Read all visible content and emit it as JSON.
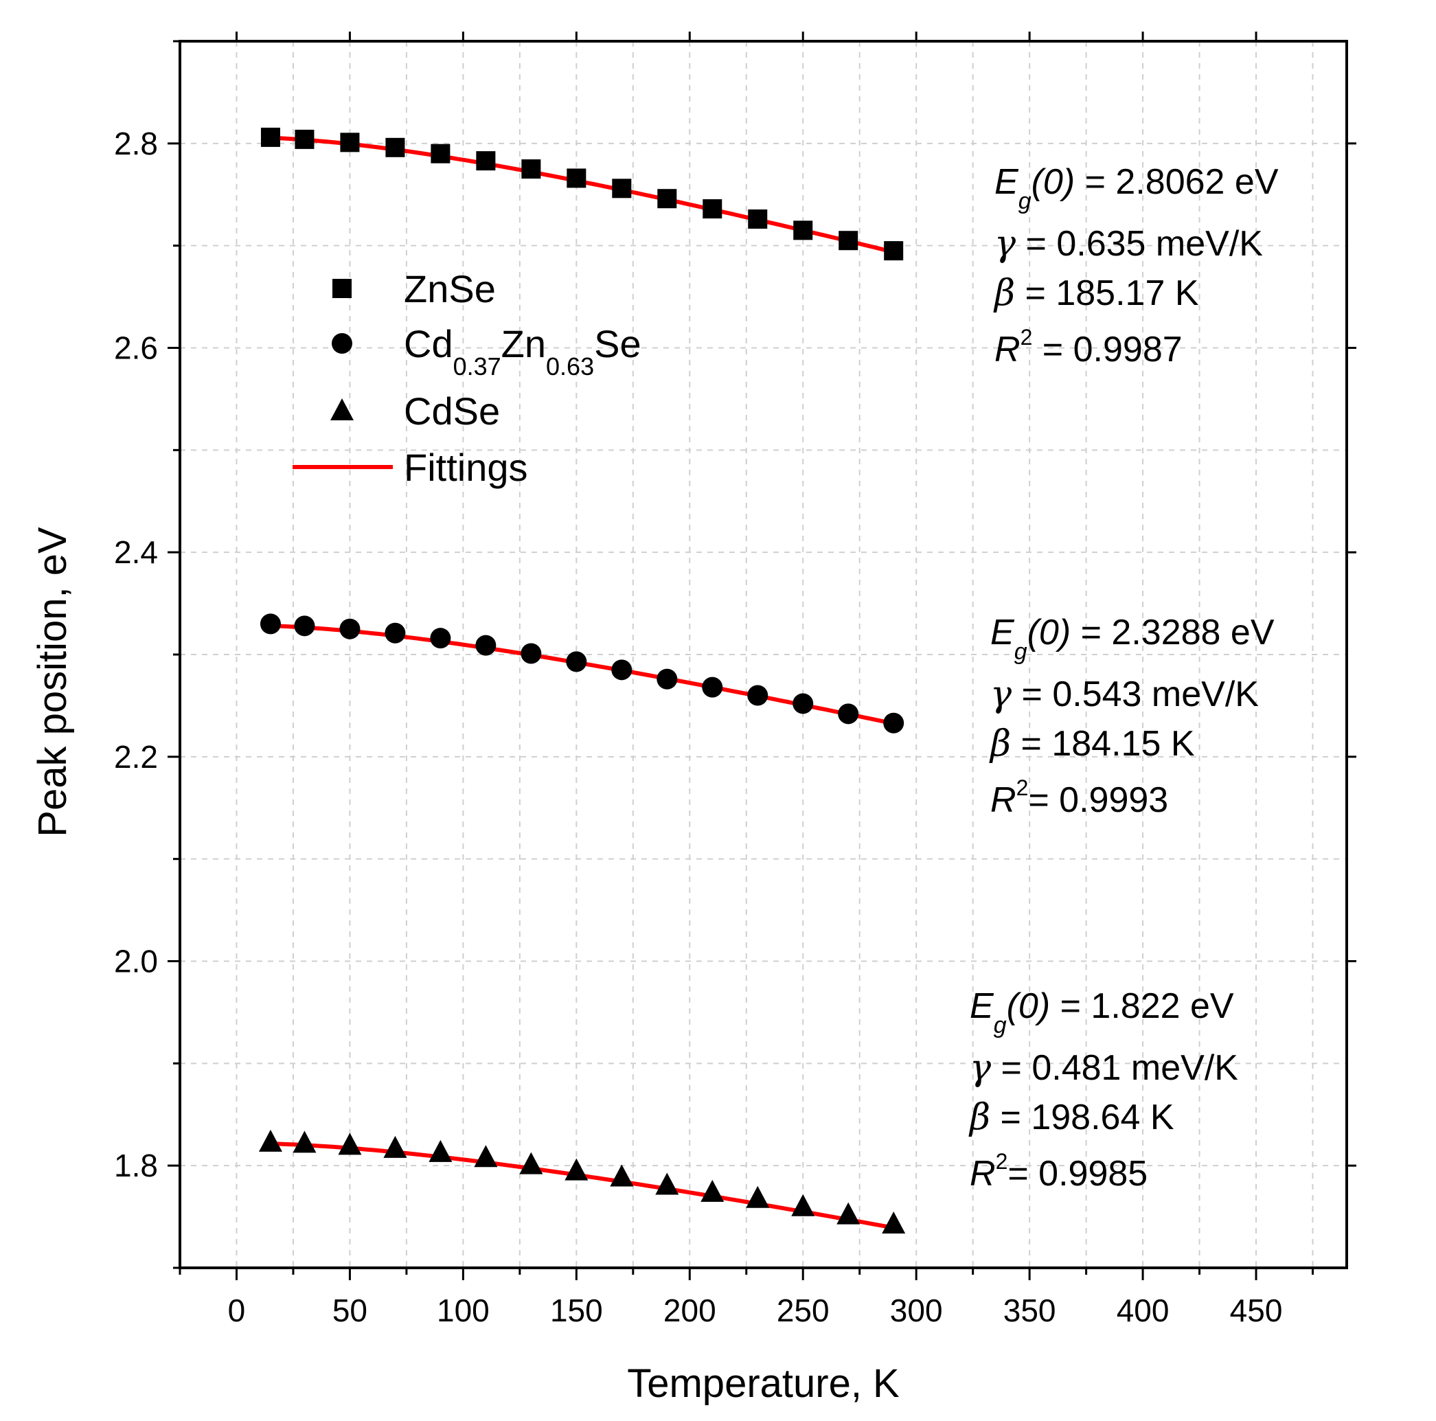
{
  "chart_data": {
    "type": "scatter",
    "title": "",
    "xlabel": "Temperature, K",
    "ylabel": "Peak position, eV",
    "xlim": [
      -25,
      490
    ],
    "ylim": [
      1.7,
      2.9
    ],
    "xticks": [
      0,
      50,
      100,
      150,
      200,
      250,
      300,
      350,
      400,
      450
    ],
    "xtick_labels": [
      "0",
      "50",
      "100",
      "150",
      "200",
      "250",
      "300",
      "350",
      "400",
      "450"
    ],
    "yticks": [
      1.8,
      2.0,
      2.2,
      2.4,
      2.6,
      2.8
    ],
    "ytick_labels": [
      "1.8",
      "2.0",
      "2.2",
      "2.4",
      "2.6",
      "2.8"
    ],
    "grid": true,
    "x": [
      15,
      30,
      50,
      70,
      90,
      110,
      130,
      150,
      170,
      190,
      210,
      230,
      250,
      270,
      290
    ],
    "series": [
      {
        "name": "ZnSe",
        "name_parts": [
          {
            "text": "ZnSe",
            "sub": false
          }
        ],
        "marker": "square",
        "values": [
          2.806,
          2.804,
          2.801,
          2.796,
          2.79,
          2.783,
          2.775,
          2.766,
          2.756,
          2.746,
          2.736,
          2.726,
          2.715,
          2.705,
          2.695
        ],
        "fit": {
          "Eg0": 2.8062,
          "gamma": 0.000635,
          "beta": 185.17
        },
        "annotation": [
          {
            "italic": "E",
            "sub": "g",
            "italic2": "(0)",
            "rest": " = 2.8062 eV"
          },
          {
            "symbol": "γ",
            "rest": " = 0.635 meV/K"
          },
          {
            "symbol": "β",
            "rest": " = 185.17 K"
          },
          {
            "italic": "R",
            "sup": "2",
            "rest": " = 0.9987"
          }
        ]
      },
      {
        "name": "Cd0.37Zn0.63Se",
        "name_parts": [
          {
            "text": "Cd",
            "sub": false
          },
          {
            "text": "0.37",
            "sub": true
          },
          {
            "text": "Zn",
            "sub": false
          },
          {
            "text": "0.63",
            "sub": true
          },
          {
            "text": "Se",
            "sub": false
          }
        ],
        "marker": "circle",
        "values": [
          2.33,
          2.328,
          2.325,
          2.321,
          2.316,
          2.309,
          2.301,
          2.293,
          2.285,
          2.276,
          2.268,
          2.26,
          2.252,
          2.242,
          2.233
        ],
        "fit": {
          "Eg0": 2.3288,
          "gamma": 0.000543,
          "beta": 184.15
        },
        "annotation": [
          {
            "italic": "E",
            "sub": "g",
            "italic2": "(0)",
            "rest": " = 2.3288 eV"
          },
          {
            "symbol": "γ",
            "rest": " = 0.543 meV/K"
          },
          {
            "symbol": "β",
            "rest": " = 184.15 K"
          },
          {
            "italic": "R",
            "sup": "2",
            "rest": "= 0.9993"
          }
        ]
      },
      {
        "name": "CdSe",
        "name_parts": [
          {
            "text": "CdSe",
            "sub": false
          }
        ],
        "marker": "triangle",
        "values": [
          1.823,
          1.822,
          1.82,
          1.817,
          1.813,
          1.808,
          1.801,
          1.795,
          1.789,
          1.781,
          1.774,
          1.768,
          1.76,
          1.752,
          1.743
        ],
        "fit": {
          "Eg0": 1.822,
          "gamma": 0.000481,
          "beta": 198.64
        },
        "annotation": [
          {
            "italic": "E",
            "sub": "g",
            "italic2": "(0)",
            "rest": " = 1.822 eV"
          },
          {
            "symbol": "γ",
            "rest": " = 0.481 meV/K"
          },
          {
            "symbol": "β",
            "rest": " = 198.64 K"
          },
          {
            "italic": "R",
            "sup": "2",
            "rest": "= 0.9985"
          }
        ]
      }
    ],
    "fit_legend": "Fittings",
    "fit_color": "#ff0000",
    "fit_x_range": [
      15,
      290
    ],
    "legend_position": "upper-left"
  }
}
